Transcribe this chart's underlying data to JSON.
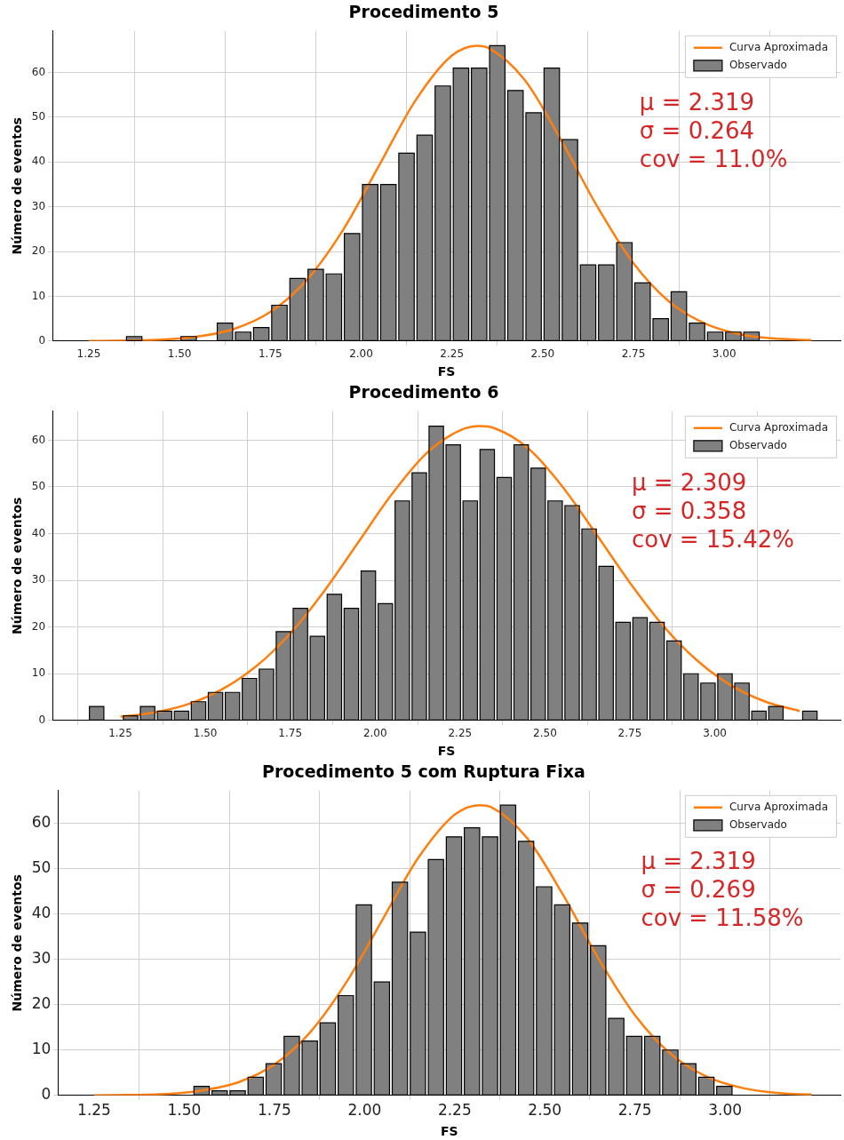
{
  "chart_data": [
    {
      "type": "histogram",
      "title": "Procedimento 5",
      "xlabel": "FS",
      "ylabel": "Número de eventos",
      "xlim": [
        1.15,
        3.32
      ],
      "ylim": [
        0,
        69.3
      ],
      "xticks": [
        {
          "value": 1.25,
          "label": "1.25"
        },
        {
          "value": 1.5,
          "label": "1.50"
        },
        {
          "value": 1.75,
          "label": "1.75"
        },
        {
          "value": 2,
          "label": "2.00"
        },
        {
          "value": 2.25,
          "label": "2.25"
        },
        {
          "value": 2.5,
          "label": "2.50"
        },
        {
          "value": 2.75,
          "label": "2.75"
        },
        {
          "value": 3,
          "label": "3.00"
        }
      ],
      "yticks": [
        0,
        10,
        20,
        30,
        40,
        50,
        60
      ],
      "grid": true,
      "legend": "top right",
      "bins": [
        1.35,
        1.4,
        1.45,
        1.5,
        1.55,
        1.6,
        1.65,
        1.7,
        1.75,
        1.8,
        1.85,
        1.9,
        1.95,
        2.0,
        2.05,
        2.1,
        2.15,
        2.2,
        2.25,
        2.3,
        2.35,
        2.4,
        2.45,
        2.5,
        2.55,
        2.6,
        2.65,
        2.7,
        2.75,
        2.8,
        2.85,
        2.9,
        2.95,
        3.0,
        3.05,
        3.1
      ],
      "series": [
        {
          "name": "Curva Aproximada",
          "type": "line",
          "color": "#ff7f0e",
          "x": [
            1.25,
            1.35,
            1.45,
            1.55,
            1.65,
            1.75,
            1.85,
            1.95,
            2.05,
            2.15,
            2.25,
            2.319,
            2.35,
            2.45,
            2.55,
            2.65,
            2.75,
            2.85,
            2.95,
            3.05,
            3.15,
            3.24
          ],
          "values": [
            0,
            0.1,
            0.3,
            1.0,
            2.7,
            6.5,
            13.6,
            24.8,
            39.3,
            53.8,
            63.8,
            66,
            65.5,
            58.4,
            45.0,
            30.1,
            17.4,
            8.7,
            3.8,
            1.4,
            0.5,
            0.2
          ]
        },
        {
          "name": "Observado",
          "color": "#808080",
          "values": [
            1,
            0,
            0,
            1,
            0,
            4,
            2,
            3,
            8,
            14,
            16,
            15,
            24,
            35,
            35,
            42,
            46,
            57,
            61,
            61,
            66,
            56,
            51,
            61,
            45,
            17,
            17,
            22,
            13,
            5,
            11,
            4,
            2,
            2,
            2
          ]
        }
      ],
      "annotations": [
        "μ = 2.319",
        "σ = 0.264",
        "cov = 11.0%"
      ]
    },
    {
      "type": "histogram",
      "title": "Procedimento 6",
      "xlabel": "FS",
      "ylabel": "Número de eventos",
      "xlim": [
        1.05,
        3.37
      ],
      "ylim": [
        0,
        66.2
      ],
      "xticks": [
        {
          "value": 1.25,
          "label": "1.25"
        },
        {
          "value": 1.5,
          "label": "1.50"
        },
        {
          "value": 1.75,
          "label": "1.75"
        },
        {
          "value": 2,
          "label": "2.00"
        },
        {
          "value": 2.25,
          "label": "2.25"
        },
        {
          "value": 2.5,
          "label": "2.50"
        },
        {
          "value": 2.75,
          "label": "2.75"
        },
        {
          "value": 3,
          "label": "3.00"
        }
      ],
      "yticks": [
        0,
        10,
        20,
        30,
        40,
        50,
        60
      ],
      "grid": true,
      "legend": "top right",
      "bins": [
        1.155,
        1.205,
        1.255,
        1.305,
        1.355,
        1.405,
        1.455,
        1.505,
        1.555,
        1.605,
        1.655,
        1.705,
        1.755,
        1.805,
        1.855,
        1.905,
        1.955,
        2.005,
        2.055,
        2.105,
        2.155,
        2.205,
        2.255,
        2.305,
        2.355,
        2.405,
        2.455,
        2.505,
        2.555,
        2.605,
        2.655,
        2.705,
        2.755,
        2.805,
        2.855,
        2.905,
        2.955,
        3.005,
        3.055,
        3.105,
        3.155,
        3.205,
        3.255,
        3.305
      ],
      "series": [
        {
          "name": "Curva Aproximada",
          "type": "line",
          "color": "#ff7f0e",
          "x": [
            1.25,
            1.35,
            1.45,
            1.55,
            1.65,
            1.75,
            1.85,
            1.95,
            2.05,
            2.15,
            2.25,
            2.309,
            2.35,
            2.45,
            2.55,
            2.65,
            2.75,
            2.85,
            2.95,
            3.05,
            3.15,
            3.25
          ],
          "values": [
            0.8,
            1.7,
            3.5,
            6.7,
            11.6,
            18.6,
            27.7,
            38.1,
            48.5,
            57.1,
            62.1,
            63,
            62.6,
            58.3,
            50.2,
            40.0,
            29.5,
            20.1,
            12.7,
            7.4,
            4.0,
            2.0
          ]
        },
        {
          "name": "Observado",
          "color": "#808080",
          "values": [
            3,
            0,
            1,
            3,
            2,
            2,
            4,
            6,
            6,
            9,
            11,
            19,
            24,
            18,
            27,
            24,
            32,
            25,
            47,
            53,
            63,
            59,
            47,
            58,
            52,
            59,
            54,
            47,
            46,
            41,
            33,
            21,
            22,
            21,
            17,
            10,
            8,
            10,
            8,
            2,
            3,
            0,
            2
          ]
        }
      ],
      "annotations": [
        "μ = 2.309",
        "σ = 0.358",
        "cov = 15.42%"
      ]
    },
    {
      "type": "histogram",
      "title": "Procedimento 5 com Ruptura Fixa",
      "xlabel": "FS",
      "ylabel": "Número de eventos",
      "xlim": [
        1.15,
        3.32
      ],
      "ylim": [
        0,
        67.2
      ],
      "xticks": [
        {
          "value": 1.25,
          "label": "1.25"
        },
        {
          "value": 1.5,
          "label": "1.50"
        },
        {
          "value": 1.75,
          "label": "1.75"
        },
        {
          "value": 2,
          "label": "2.00"
        },
        {
          "value": 2.25,
          "label": "2.25"
        },
        {
          "value": 2.5,
          "label": "2.50"
        },
        {
          "value": 2.75,
          "label": "2.75"
        },
        {
          "value": 3,
          "label": "3.00"
        }
      ],
      "yticks": [
        0,
        10,
        20,
        30,
        40,
        50,
        60
      ],
      "grid": true,
      "legend": "top right",
      "bins": [
        1.523,
        1.573,
        1.623,
        1.673,
        1.723,
        1.773,
        1.823,
        1.873,
        1.923,
        1.973,
        2.023,
        2.073,
        2.123,
        2.173,
        2.223,
        2.273,
        2.323,
        2.373,
        2.423,
        2.473,
        2.523,
        2.573,
        2.623,
        2.673,
        2.723,
        2.773,
        2.823,
        2.873,
        2.923,
        2.973,
        3.023
      ],
      "series": [
        {
          "name": "Curva Aproximada",
          "type": "line",
          "color": "#ff7f0e",
          "x": [
            1.25,
            1.35,
            1.45,
            1.55,
            1.65,
            1.75,
            1.85,
            1.95,
            2.05,
            2.15,
            2.25,
            2.319,
            2.35,
            2.45,
            2.55,
            2.65,
            2.75,
            2.85,
            2.95,
            3.05,
            3.15,
            3.24
          ],
          "values": [
            0,
            0.1,
            0.3,
            1.1,
            2.9,
            6.8,
            14.0,
            25.0,
            38.8,
            52.5,
            61.9,
            64,
            63.6,
            56.8,
            44.3,
            30.0,
            17.7,
            9.1,
            4.1,
            1.6,
            0.5,
            0.2
          ]
        },
        {
          "name": "Observado",
          "color": "#808080",
          "values": [
            2,
            1,
            1,
            4,
            7,
            13,
            12,
            16,
            22,
            42,
            25,
            47,
            36,
            52,
            57,
            59,
            57,
            64,
            56,
            46,
            42,
            38,
            33,
            17,
            13,
            13,
            10,
            7,
            4,
            2
          ]
        }
      ],
      "annotations": [
        "μ = 2.319",
        "σ = 0.269",
        "cov = 11.58%"
      ]
    }
  ]
}
